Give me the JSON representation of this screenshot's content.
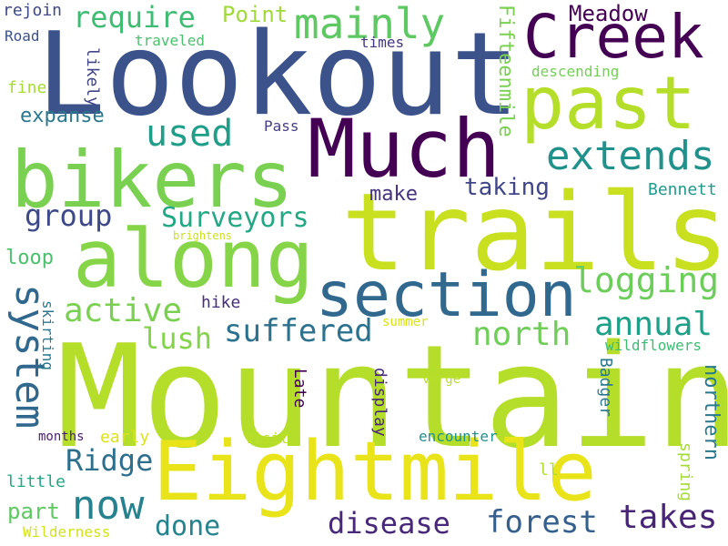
{
  "words": [
    {
      "text": "Mountain",
      "color": "#b5de2b",
      "orientation": "horizontal"
    },
    {
      "text": "Lookout",
      "color": "#3b528b",
      "orientation": "horizontal"
    },
    {
      "text": "trails",
      "color": "#c8e020",
      "orientation": "horizontal"
    },
    {
      "text": "Eightmile",
      "color": "#e8e419",
      "orientation": "horizontal"
    },
    {
      "text": "Much",
      "color": "#440154",
      "orientation": "horizontal"
    },
    {
      "text": "bikers",
      "color": "#7ad151",
      "orientation": "horizontal"
    },
    {
      "text": "along",
      "color": "#86d549",
      "orientation": "horizontal"
    },
    {
      "text": "past",
      "color": "#b5de2b",
      "orientation": "horizontal"
    },
    {
      "text": "Creek",
      "color": "#440154",
      "orientation": "horizontal"
    },
    {
      "text": "section",
      "color": "#31688e",
      "orientation": "horizontal"
    },
    {
      "text": "system",
      "color": "#31688e",
      "orientation": "vertical"
    },
    {
      "text": "now",
      "color": "#26828e",
      "orientation": "horizontal"
    },
    {
      "text": "mainly",
      "color": "#5ec962",
      "orientation": "horizontal"
    },
    {
      "text": "extends",
      "color": "#21918c",
      "orientation": "horizontal"
    },
    {
      "text": "used",
      "color": "#1f9e89",
      "orientation": "horizontal"
    },
    {
      "text": "forest",
      "color": "#35608d",
      "orientation": "horizontal"
    },
    {
      "text": "disease",
      "color": "#482878",
      "orientation": "horizontal"
    },
    {
      "text": "takes",
      "color": "#482475",
      "orientation": "horizontal"
    },
    {
      "text": "logging",
      "color": "#6ccd5a",
      "orientation": "horizontal"
    },
    {
      "text": "suffered",
      "color": "#2c728e",
      "orientation": "horizontal"
    },
    {
      "text": "Surveyors",
      "color": "#22a884",
      "orientation": "horizontal"
    },
    {
      "text": "active",
      "color": "#7ad151",
      "orientation": "horizontal"
    },
    {
      "text": "annual",
      "color": "#1fa088",
      "orientation": "horizontal"
    },
    {
      "text": "north",
      "color": "#6ece58",
      "orientation": "horizontal"
    },
    {
      "text": "Ridge",
      "color": "#2d708e",
      "orientation": "horizontal"
    },
    {
      "text": "lush",
      "color": "#84d44b",
      "orientation": "horizontal"
    },
    {
      "text": "group",
      "color": "#3e4989",
      "orientation": "horizontal"
    },
    {
      "text": "require",
      "color": "#3fbc73",
      "orientation": "horizontal"
    },
    {
      "text": "done",
      "color": "#25848e",
      "orientation": "horizontal"
    },
    {
      "text": "Fifteenmile",
      "color": "#7ad151",
      "orientation": "vertical"
    },
    {
      "text": "taking",
      "color": "#404688",
      "orientation": "horizontal"
    },
    {
      "text": "expanse",
      "color": "#2a788e",
      "orientation": "horizontal"
    },
    {
      "text": "make",
      "color": "#46327e",
      "orientation": "horizontal"
    },
    {
      "text": "Point",
      "color": "#a0da39",
      "orientation": "horizontal"
    },
    {
      "text": "Meadow",
      "color": "#440154",
      "orientation": "horizontal"
    },
    {
      "text": "northern",
      "color": "#2a788e",
      "orientation": "vertical"
    },
    {
      "text": "part",
      "color": "#5ec962",
      "orientation": "horizontal"
    },
    {
      "text": "loop",
      "color": "#4ac16d",
      "orientation": "horizontal"
    },
    {
      "text": "Badger",
      "color": "#2a788e",
      "orientation": "vertical"
    },
    {
      "text": "spring",
      "color": "#a5db36",
      "orientation": "vertical"
    },
    {
      "text": "Bennett",
      "color": "#1e9b8a",
      "orientation": "horizontal"
    },
    {
      "text": "likely",
      "color": "#414487",
      "orientation": "vertical"
    },
    {
      "text": "Late",
      "color": "#440154",
      "orientation": "vertical"
    },
    {
      "text": "display",
      "color": "#482878",
      "orientation": "vertical"
    },
    {
      "text": "skirting",
      "color": "#2a788e",
      "orientation": "vertical"
    },
    {
      "text": "rejoin",
      "color": "#3e4989",
      "orientation": "horizontal"
    },
    {
      "text": "Road",
      "color": "#3b528b",
      "orientation": "horizontal"
    },
    {
      "text": "fine",
      "color": "#a8db34",
      "orientation": "horizontal"
    },
    {
      "text": "traveled",
      "color": "#4ac16d",
      "orientation": "horizontal"
    },
    {
      "text": "times",
      "color": "#453781",
      "orientation": "horizontal"
    },
    {
      "text": "descending",
      "color": "#73d056",
      "orientation": "horizontal"
    },
    {
      "text": "Pass",
      "color": "#433e85",
      "orientation": "horizontal"
    },
    {
      "text": "brightens",
      "color": "#cae11f",
      "orientation": "horizontal"
    },
    {
      "text": "hike",
      "color": "#472d7b",
      "orientation": "horizontal"
    },
    {
      "text": "summer",
      "color": "#d8e219",
      "orientation": "horizontal"
    },
    {
      "text": "wildflowers",
      "color": "#3dbc74",
      "orientation": "horizontal"
    },
    {
      "text": "verge",
      "color": "#b8de29",
      "orientation": "horizontal"
    },
    {
      "text": "months",
      "color": "#481f70",
      "orientation": "horizontal"
    },
    {
      "text": "early",
      "color": "#dde318",
      "orientation": "horizontal"
    },
    {
      "text": "visit",
      "color": "#bddf26",
      "orientation": "horizontal"
    },
    {
      "text": "encounter",
      "color": "#21918c",
      "orientation": "horizontal"
    },
    {
      "text": "little",
      "color": "#22a884",
      "orientation": "horizontal"
    },
    {
      "text": "ll",
      "color": "#b0dd2f",
      "orientation": "horizontal"
    },
    {
      "text": "Wilderness",
      "color": "#d2e21b",
      "orientation": "horizontal"
    }
  ]
}
